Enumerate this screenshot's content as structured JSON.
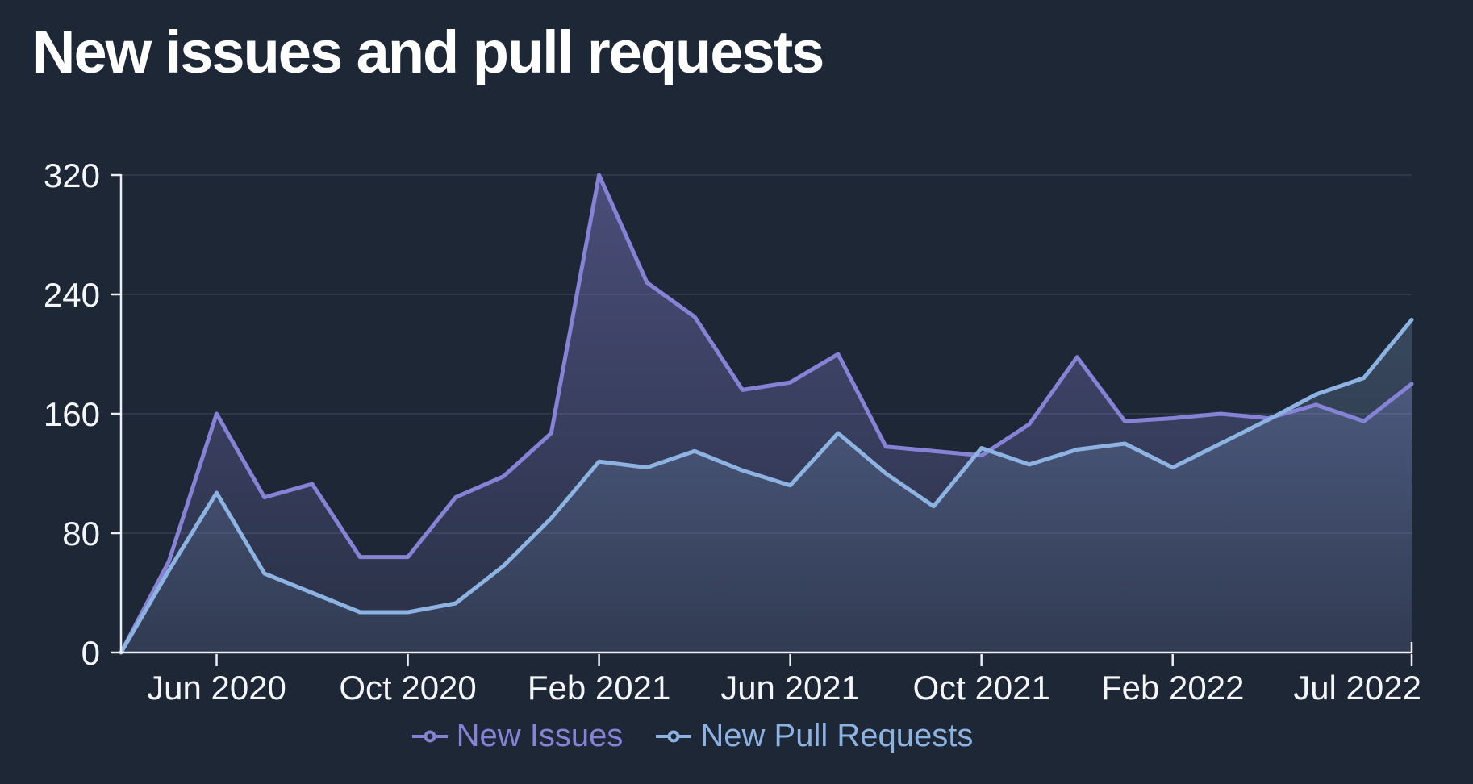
{
  "title": "New issues and pull requests",
  "colors": {
    "background": "#1e2735",
    "issues": "#8683d7",
    "pull_requests": "#8db3e2",
    "axis": "#edf0f6",
    "label_text": "#f4f6fa"
  },
  "chart_data": {
    "type": "area",
    "title": "New issues and pull requests",
    "xlabel": "",
    "ylabel": "",
    "ylim": [
      0,
      320
    ],
    "y_ticks": [
      0,
      80,
      160,
      240,
      320
    ],
    "grid": "horizontal",
    "legend_position": "bottom",
    "x": [
      "Apr 2020",
      "May 2020",
      "Jun 2020",
      "Jul 2020",
      "Aug 2020",
      "Sep 2020",
      "Oct 2020",
      "Nov 2020",
      "Dec 2020",
      "Jan 2021",
      "Feb 2021",
      "Mar 2021",
      "Apr 2021",
      "May 2021",
      "Jun 2021",
      "Jul 2021",
      "Aug 2021",
      "Sep 2021",
      "Oct 2021",
      "Nov 2021",
      "Dec 2021",
      "Jan 2022",
      "Feb 2022",
      "Mar 2022",
      "Apr 2022",
      "May 2022",
      "Jun 2022",
      "Jul 2022"
    ],
    "x_tick_labels": [
      {
        "label": "Jun 2020",
        "index": 2
      },
      {
        "label": "Oct 2020",
        "index": 6
      },
      {
        "label": "Feb 2021",
        "index": 10
      },
      {
        "label": "Jun 2021",
        "index": 14
      },
      {
        "label": "Oct 2021",
        "index": 18
      },
      {
        "label": "Feb 2022",
        "index": 22
      },
      {
        "label": "Jul 2022",
        "index": 27
      }
    ],
    "series": [
      {
        "name": "New Issues",
        "color": "#8683d7",
        "values": [
          0,
          61,
          160,
          104,
          113,
          64,
          64,
          104,
          118,
          147,
          320,
          248,
          225,
          176,
          181,
          200,
          138,
          135,
          132,
          153,
          198,
          155,
          157,
          160,
          157,
          166,
          155,
          180
        ]
      },
      {
        "name": "New Pull Requests",
        "color": "#8db3e2",
        "values": [
          0,
          55,
          107,
          53,
          40,
          27,
          27,
          33,
          58,
          90,
          128,
          124,
          135,
          122,
          112,
          147,
          120,
          98,
          137,
          126,
          136,
          140,
          124,
          140,
          156,
          173,
          184,
          223
        ]
      }
    ]
  },
  "legend": {
    "items": [
      {
        "label": "New Issues",
        "color": "#8683d7"
      },
      {
        "label": "New Pull Requests",
        "color": "#8db3e2"
      }
    ]
  }
}
